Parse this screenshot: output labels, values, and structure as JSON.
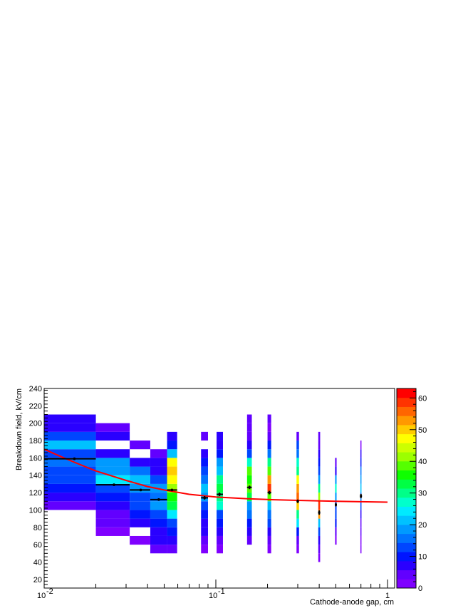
{
  "chart_data": {
    "type": "heatmap",
    "title": "",
    "xlabel": "Cathode-anode gap, cm",
    "ylabel": "Breakdown field, kV/cm",
    "x_scale": "log",
    "xlim": [
      0.01,
      1.1
    ],
    "ylim": [
      10,
      240
    ],
    "x_ticks": [
      {
        "value": 0.01,
        "base": "10",
        "exp": "-2"
      },
      {
        "value": 0.1,
        "base": "10",
        "exp": "-1"
      },
      {
        "value": 1,
        "base": "1",
        "exp": ""
      }
    ],
    "y_ticks": [
      "20",
      "40",
      "60",
      "80",
      "100",
      "120",
      "140",
      "160",
      "180",
      "200",
      "220",
      "240"
    ],
    "z_range": [
      0,
      63
    ],
    "z_ticks": [
      "0",
      "10",
      "20",
      "30",
      "40",
      "50",
      "60"
    ],
    "palette": [
      "#7f00ff",
      "#6200ff",
      "#2a00ff",
      "#0015ff",
      "#0046ff",
      "#0073ff",
      "#009aff",
      "#00c2ff",
      "#00eaff",
      "#00ffcc",
      "#00ff88",
      "#00ff44",
      "#0fff00",
      "#55ff00",
      "#9cff00",
      "#ccff00",
      "#ffff00",
      "#ffcc00",
      "#ff9900",
      "#ff6600",
      "#ff3300",
      "#ff0000"
    ],
    "columns": [
      {
        "x0": 0.01,
        "x1": 0.02,
        "cells": [
          [
            100,
            4
          ],
          [
            110,
            8
          ],
          [
            120,
            10
          ],
          [
            130,
            12
          ],
          [
            140,
            12
          ],
          [
            150,
            16
          ],
          [
            160,
            14
          ],
          [
            170,
            22
          ],
          [
            180,
            12
          ],
          [
            190,
            8
          ],
          [
            200,
            6
          ]
        ]
      },
      {
        "x0": 0.02,
        "x1": 0.0315,
        "cells": [
          [
            70,
            2
          ],
          [
            80,
            4
          ],
          [
            90,
            4
          ],
          [
            100,
            8
          ],
          [
            110,
            10
          ],
          [
            120,
            14
          ],
          [
            130,
            24
          ],
          [
            140,
            20
          ],
          [
            150,
            18
          ],
          [
            160,
            8
          ],
          [
            180,
            6
          ],
          [
            190,
            4
          ]
        ]
      },
      {
        "x0": 0.0315,
        "x1": 0.0415,
        "cells": [
          [
            60,
            2
          ],
          [
            80,
            8
          ],
          [
            90,
            10
          ],
          [
            100,
            12
          ],
          [
            110,
            14
          ],
          [
            120,
            18
          ],
          [
            130,
            22
          ],
          [
            140,
            16
          ],
          [
            150,
            8
          ],
          [
            170,
            4
          ]
        ]
      },
      {
        "x0": 0.0415,
        "x1": 0.052,
        "cells": [
          [
            50,
            4
          ],
          [
            60,
            6
          ],
          [
            70,
            8
          ],
          [
            80,
            10
          ],
          [
            90,
            12
          ],
          [
            100,
            18
          ],
          [
            110,
            16
          ],
          [
            120,
            20
          ],
          [
            130,
            14
          ],
          [
            140,
            8
          ],
          [
            150,
            6
          ],
          [
            160,
            4
          ]
        ]
      },
      {
        "x0": 0.052,
        "x1": 0.0595,
        "cells": [
          [
            50,
            4
          ],
          [
            60,
            8
          ],
          [
            70,
            10
          ],
          [
            80,
            12
          ],
          [
            90,
            24
          ],
          [
            100,
            32
          ],
          [
            110,
            36
          ],
          [
            120,
            42
          ],
          [
            130,
            46
          ],
          [
            140,
            50
          ],
          [
            150,
            48
          ],
          [
            160,
            22
          ],
          [
            170,
            10
          ],
          [
            180,
            6
          ]
        ]
      },
      {
        "x0": 0.082,
        "x1": 0.09,
        "cells": [
          [
            50,
            2
          ],
          [
            60,
            4
          ],
          [
            70,
            6
          ],
          [
            80,
            8
          ],
          [
            90,
            10
          ],
          [
            100,
            14
          ],
          [
            110,
            20
          ],
          [
            120,
            22
          ],
          [
            130,
            16
          ],
          [
            140,
            12
          ],
          [
            150,
            10
          ],
          [
            160,
            6
          ],
          [
            180,
            4
          ]
        ]
      },
      {
        "x0": 0.101,
        "x1": 0.11,
        "cells": [
          [
            50,
            2
          ],
          [
            60,
            4
          ],
          [
            70,
            8
          ],
          [
            80,
            10
          ],
          [
            90,
            14
          ],
          [
            100,
            26
          ],
          [
            110,
            30
          ],
          [
            120,
            34
          ],
          [
            130,
            30
          ],
          [
            140,
            22
          ],
          [
            150,
            18
          ],
          [
            160,
            10
          ],
          [
            170,
            8
          ],
          [
            180,
            6
          ]
        ]
      },
      {
        "x0": 0.152,
        "x1": 0.162,
        "cells": [
          [
            60,
            4
          ],
          [
            70,
            6
          ],
          [
            80,
            10
          ],
          [
            90,
            16
          ],
          [
            100,
            20
          ],
          [
            110,
            32
          ],
          [
            120,
            40
          ],
          [
            130,
            36
          ],
          [
            140,
            38
          ],
          [
            150,
            28
          ],
          [
            160,
            14
          ],
          [
            170,
            8
          ],
          [
            180,
            4
          ],
          [
            190,
            4
          ],
          [
            200,
            4
          ]
        ]
      },
      {
        "x0": 0.2,
        "x1": 0.21,
        "cells": [
          [
            50,
            2
          ],
          [
            60,
            4
          ],
          [
            70,
            8
          ],
          [
            80,
            12
          ],
          [
            90,
            16
          ],
          [
            100,
            22
          ],
          [
            110,
            38
          ],
          [
            120,
            60
          ],
          [
            130,
            54
          ],
          [
            140,
            40
          ],
          [
            150,
            30
          ],
          [
            160,
            16
          ],
          [
            170,
            10
          ],
          [
            180,
            4
          ],
          [
            190,
            2
          ],
          [
            200,
            4
          ]
        ]
      },
      {
        "x0": 0.295,
        "x1": 0.305,
        "cells": [
          [
            50,
            2
          ],
          [
            60,
            4
          ],
          [
            70,
            10
          ],
          [
            80,
            24
          ],
          [
            90,
            30
          ],
          [
            100,
            50
          ],
          [
            110,
            56
          ],
          [
            120,
            52
          ],
          [
            130,
            46
          ],
          [
            140,
            30
          ],
          [
            150,
            26
          ],
          [
            160,
            16
          ],
          [
            170,
            12
          ],
          [
            180,
            4
          ]
        ]
      },
      {
        "x0": 0.395,
        "x1": 0.405,
        "cells": [
          [
            40,
            2
          ],
          [
            50,
            4
          ],
          [
            60,
            8
          ],
          [
            70,
            14
          ],
          [
            80,
            22
          ],
          [
            90,
            52
          ],
          [
            100,
            58
          ],
          [
            110,
            42
          ],
          [
            120,
            30
          ],
          [
            130,
            18
          ],
          [
            140,
            14
          ],
          [
            150,
            10
          ],
          [
            160,
            6
          ],
          [
            170,
            4
          ],
          [
            180,
            4
          ]
        ]
      },
      {
        "x0": 0.495,
        "x1": 0.505,
        "cells": [
          [
            60,
            2
          ],
          [
            70,
            4
          ],
          [
            80,
            10
          ],
          [
            90,
            12
          ],
          [
            100,
            14
          ],
          [
            110,
            20
          ],
          [
            120,
            26
          ],
          [
            130,
            18
          ],
          [
            140,
            8
          ],
          [
            150,
            4
          ]
        ]
      },
      {
        "x0": 0.695,
        "x1": 0.705,
        "cells": [
          [
            50,
            2
          ],
          [
            60,
            2
          ],
          [
            70,
            4
          ],
          [
            80,
            4
          ],
          [
            90,
            8
          ],
          [
            100,
            12
          ],
          [
            110,
            16
          ],
          [
            120,
            22
          ],
          [
            130,
            18
          ],
          [
            140,
            16
          ],
          [
            150,
            10
          ],
          [
            160,
            6
          ],
          [
            170,
            2
          ]
        ]
      }
    ],
    "profile_points": [
      {
        "x": 0.015,
        "y": 159,
        "xerr": [
          0.01,
          0.02
        ],
        "yerr": 1.5
      },
      {
        "x": 0.0255,
        "y": 129,
        "xerr": [
          0.02,
          0.0315
        ],
        "yerr": 1.5
      },
      {
        "x": 0.0365,
        "y": 123,
        "xerr": [
          0.0315,
          0.0415
        ],
        "yerr": 1.5
      },
      {
        "x": 0.0465,
        "y": 112,
        "xerr": [
          0.0415,
          0.052
        ],
        "yerr": 1.5
      },
      {
        "x": 0.0555,
        "y": 123,
        "xerr": [
          0.052,
          0.0595
        ],
        "yerr": 1.5
      },
      {
        "x": 0.086,
        "y": 114,
        "xerr": [
          0.082,
          0.09
        ],
        "yerr": 2
      },
      {
        "x": 0.105,
        "y": 118,
        "xerr": [
          0.101,
          0.11
        ],
        "yerr": 2
      },
      {
        "x": 0.157,
        "y": 126,
        "xerr": [
          0.152,
          0.162
        ],
        "yerr": 2
      },
      {
        "x": 0.205,
        "y": 120,
        "xerr": [
          0.2,
          0.21
        ],
        "yerr": 2
      },
      {
        "x": 0.3,
        "y": 110,
        "xerr": [
          0.295,
          0.305
        ],
        "yerr": 2
      },
      {
        "x": 0.4,
        "y": 97,
        "xerr": [
          0.395,
          0.405
        ],
        "yerr": 2.5
      },
      {
        "x": 0.5,
        "y": 106,
        "xerr": [
          0.495,
          0.505
        ],
        "yerr": 2
      },
      {
        "x": 0.7,
        "y": 116,
        "xerr": [
          0.695,
          0.705
        ],
        "yerr": 2.5
      }
    ],
    "fit_curve": {
      "color": "#ff0000",
      "x": [
        0.01,
        0.012,
        0.015,
        0.02,
        0.03,
        0.04,
        0.05,
        0.07,
        0.1,
        0.15,
        0.2,
        0.3,
        0.5,
        0.7,
        1.0
      ],
      "y": [
        170,
        163,
        155,
        145,
        134,
        127,
        123,
        118,
        115,
        113,
        112,
        111,
        110,
        109.5,
        109
      ]
    }
  }
}
